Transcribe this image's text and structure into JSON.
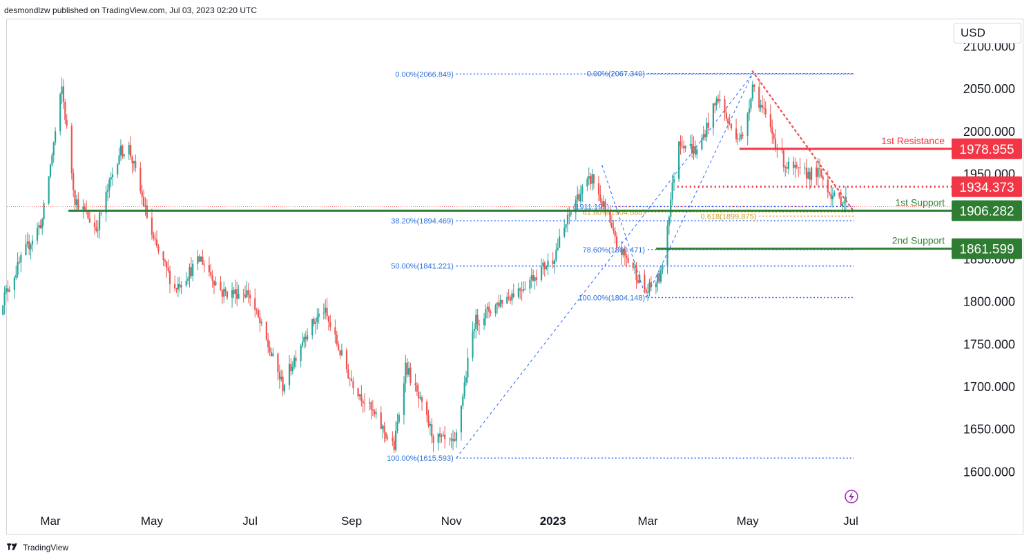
{
  "header": {
    "published_text": "desmondlzw published on TradingView.com, Jul 03, 2023 02:20 UTC"
  },
  "footer": {
    "brand": "TradingView"
  },
  "price_scale": {
    "currency": "USD"
  },
  "colors": {
    "up": "#26a69a",
    "down": "#ef5350",
    "resistance": "#f23645",
    "support": "#2e7d32",
    "fib": "#2962ff",
    "fib_text": "#2a6fdb",
    "golden": "#c9a227",
    "axis_text": "#131722"
  },
  "chart_data": {
    "type": "candlestick",
    "title": "",
    "symbol": "",
    "ylim": [
      1572,
      2123
    ],
    "y_ticks": [
      1600,
      1650,
      1700,
      1750,
      1800,
      1850,
      1900,
      1950,
      2000,
      2050,
      2100
    ],
    "y_tick_labels": [
      "1600.000",
      "1650.000",
      "1700.000",
      "1750.000",
      "1800.000",
      "1850.000",
      "1900.000",
      "1950.000",
      "2000.000",
      "2050.000",
      "2100.000"
    ],
    "x_ticks": [
      {
        "label": "Mar",
        "date": "2022-03-01",
        "bold": false
      },
      {
        "label": "May",
        "date": "2022-05-02",
        "bold": false
      },
      {
        "label": "Jul",
        "date": "2022-07-01",
        "bold": false
      },
      {
        "label": "Sep",
        "date": "2022-09-01",
        "bold": false
      },
      {
        "label": "Nov",
        "date": "2022-11-01",
        "bold": false
      },
      {
        "label": "2023",
        "date": "2023-01-02",
        "bold": true
      },
      {
        "label": "Mar",
        "date": "2023-03-01",
        "bold": false
      },
      {
        "label": "May",
        "date": "2023-05-01",
        "bold": false
      },
      {
        "label": "Jul",
        "date": "2023-07-03",
        "bold": false
      }
    ],
    "price_path": [
      [
        "2022-01-28",
        1790
      ],
      [
        "2022-02-14",
        1860
      ],
      [
        "2022-02-24",
        1895
      ],
      [
        "2022-03-08",
        2050
      ],
      [
        "2022-03-16",
        1920
      ],
      [
        "2022-03-29",
        1885
      ],
      [
        "2022-04-12",
        1975
      ],
      [
        "2022-04-18",
        1980
      ],
      [
        "2022-05-03",
        1870
      ],
      [
        "2022-05-16",
        1815
      ],
      [
        "2022-06-01",
        1850
      ],
      [
        "2022-06-14",
        1810
      ],
      [
        "2022-06-30",
        1810
      ],
      [
        "2022-07-21",
        1700
      ],
      [
        "2022-08-03",
        1760
      ],
      [
        "2022-08-15",
        1790
      ],
      [
        "2022-08-31",
        1710
      ],
      [
        "2022-09-15",
        1665
      ],
      [
        "2022-09-27",
        1628
      ],
      [
        "2022-10-04",
        1725
      ],
      [
        "2022-10-21",
        1640
      ],
      [
        "2022-11-03",
        1630
      ],
      [
        "2022-11-15",
        1775
      ],
      [
        "2022-12-01",
        1800
      ],
      [
        "2022-12-13",
        1815
      ],
      [
        "2023-01-02",
        1850
      ],
      [
        "2023-01-16",
        1920
      ],
      [
        "2023-01-26",
        1945
      ],
      [
        "2023-02-02",
        1910
      ],
      [
        "2023-02-10",
        1865
      ],
      [
        "2023-02-20",
        1840
      ],
      [
        "2023-02-28",
        1810
      ],
      [
        "2023-03-09",
        1830
      ],
      [
        "2023-03-15",
        1920
      ],
      [
        "2023-03-20",
        1990
      ],
      [
        "2023-03-31",
        1975
      ],
      [
        "2023-04-13",
        2040
      ],
      [
        "2023-04-20",
        2005
      ],
      [
        "2023-04-28",
        1990
      ],
      [
        "2023-05-04",
        2055
      ],
      [
        "2023-05-12",
        2015
      ],
      [
        "2023-05-24",
        1960
      ],
      [
        "2023-06-02",
        1950
      ],
      [
        "2023-06-14",
        1950
      ],
      [
        "2023-06-23",
        1920
      ],
      [
        "2023-06-30",
        1918
      ]
    ],
    "current_price_line": 1911,
    "levels": [
      {
        "name": "1st Resistance",
        "value": 1978.955,
        "label": "1978.955",
        "style": "solid",
        "kind": "resistance",
        "from": "2023-04-26"
      },
      {
        "name": "",
        "value": 1934.373,
        "label": "1934.373",
        "style": "dotted",
        "kind": "resistance",
        "from": "2023-03-19"
      },
      {
        "name": "1st Support",
        "value": 1906.282,
        "label": "1906.282",
        "style": "solid",
        "kind": "support",
        "from": "2022-03-12"
      },
      {
        "name": "2nd Support",
        "value": 1861.599,
        "label": "1861.599",
        "style": "solid",
        "kind": "support",
        "from": "2023-03-06"
      }
    ],
    "fib_sets": [
      {
        "start_date": "2022-11-04",
        "end_date": "2023-07-05",
        "anchor_low": [
          "2022-11-04",
          1615.593
        ],
        "anchor_high": [
          "2023-05-04",
          2066.849
        ],
        "levels": [
          {
            "text": "0.00%(2066.849)",
            "value": 2066.849
          },
          {
            "text": "38.20%(1894.469)",
            "value": 1894.469
          },
          {
            "text": "50.00%(1841.221)",
            "value": 1841.221
          },
          {
            "text": "100.00%(1615.593)",
            "value": 1615.593
          }
        ]
      },
      {
        "start_date": "2023-03-01",
        "end_date": "2023-07-05",
        "anchor_low": [
          "2023-02-28",
          1804.148
        ],
        "anchor_high": [
          "2023-05-04",
          2067.34
        ],
        "levels": [
          {
            "text": "0.00%(2067.340)",
            "value": 2067.34
          },
          {
            "text": "61.80%(1904.688)",
            "value": 1904.688,
            "golden": true
          },
          {
            "text": "78.60%(1860.471)",
            "value": 1860.471
          },
          {
            "text": "100.00%(1804.148)",
            "value": 1804.148
          }
        ]
      },
      {
        "start_date": "2023-02-07",
        "end_date": "2023-07-05",
        "anchor_low": [
          "2023-02-01",
          1960
        ],
        "anchor_high": [
          "2023-02-28",
          1804
        ],
        "levels": [
          {
            "text": "(1911.193)",
            "value": 1911.193
          }
        ]
      },
      {
        "start_date": "2023-05-08",
        "end_date": "2023-07-05",
        "levels": [
          {
            "text": "0.618(1899.875)",
            "value": 1899.875,
            "golden": true
          }
        ]
      }
    ],
    "trendline": {
      "from": [
        "2023-05-04",
        2070
      ],
      "to": [
        "2023-07-05",
        1905
      ]
    }
  }
}
